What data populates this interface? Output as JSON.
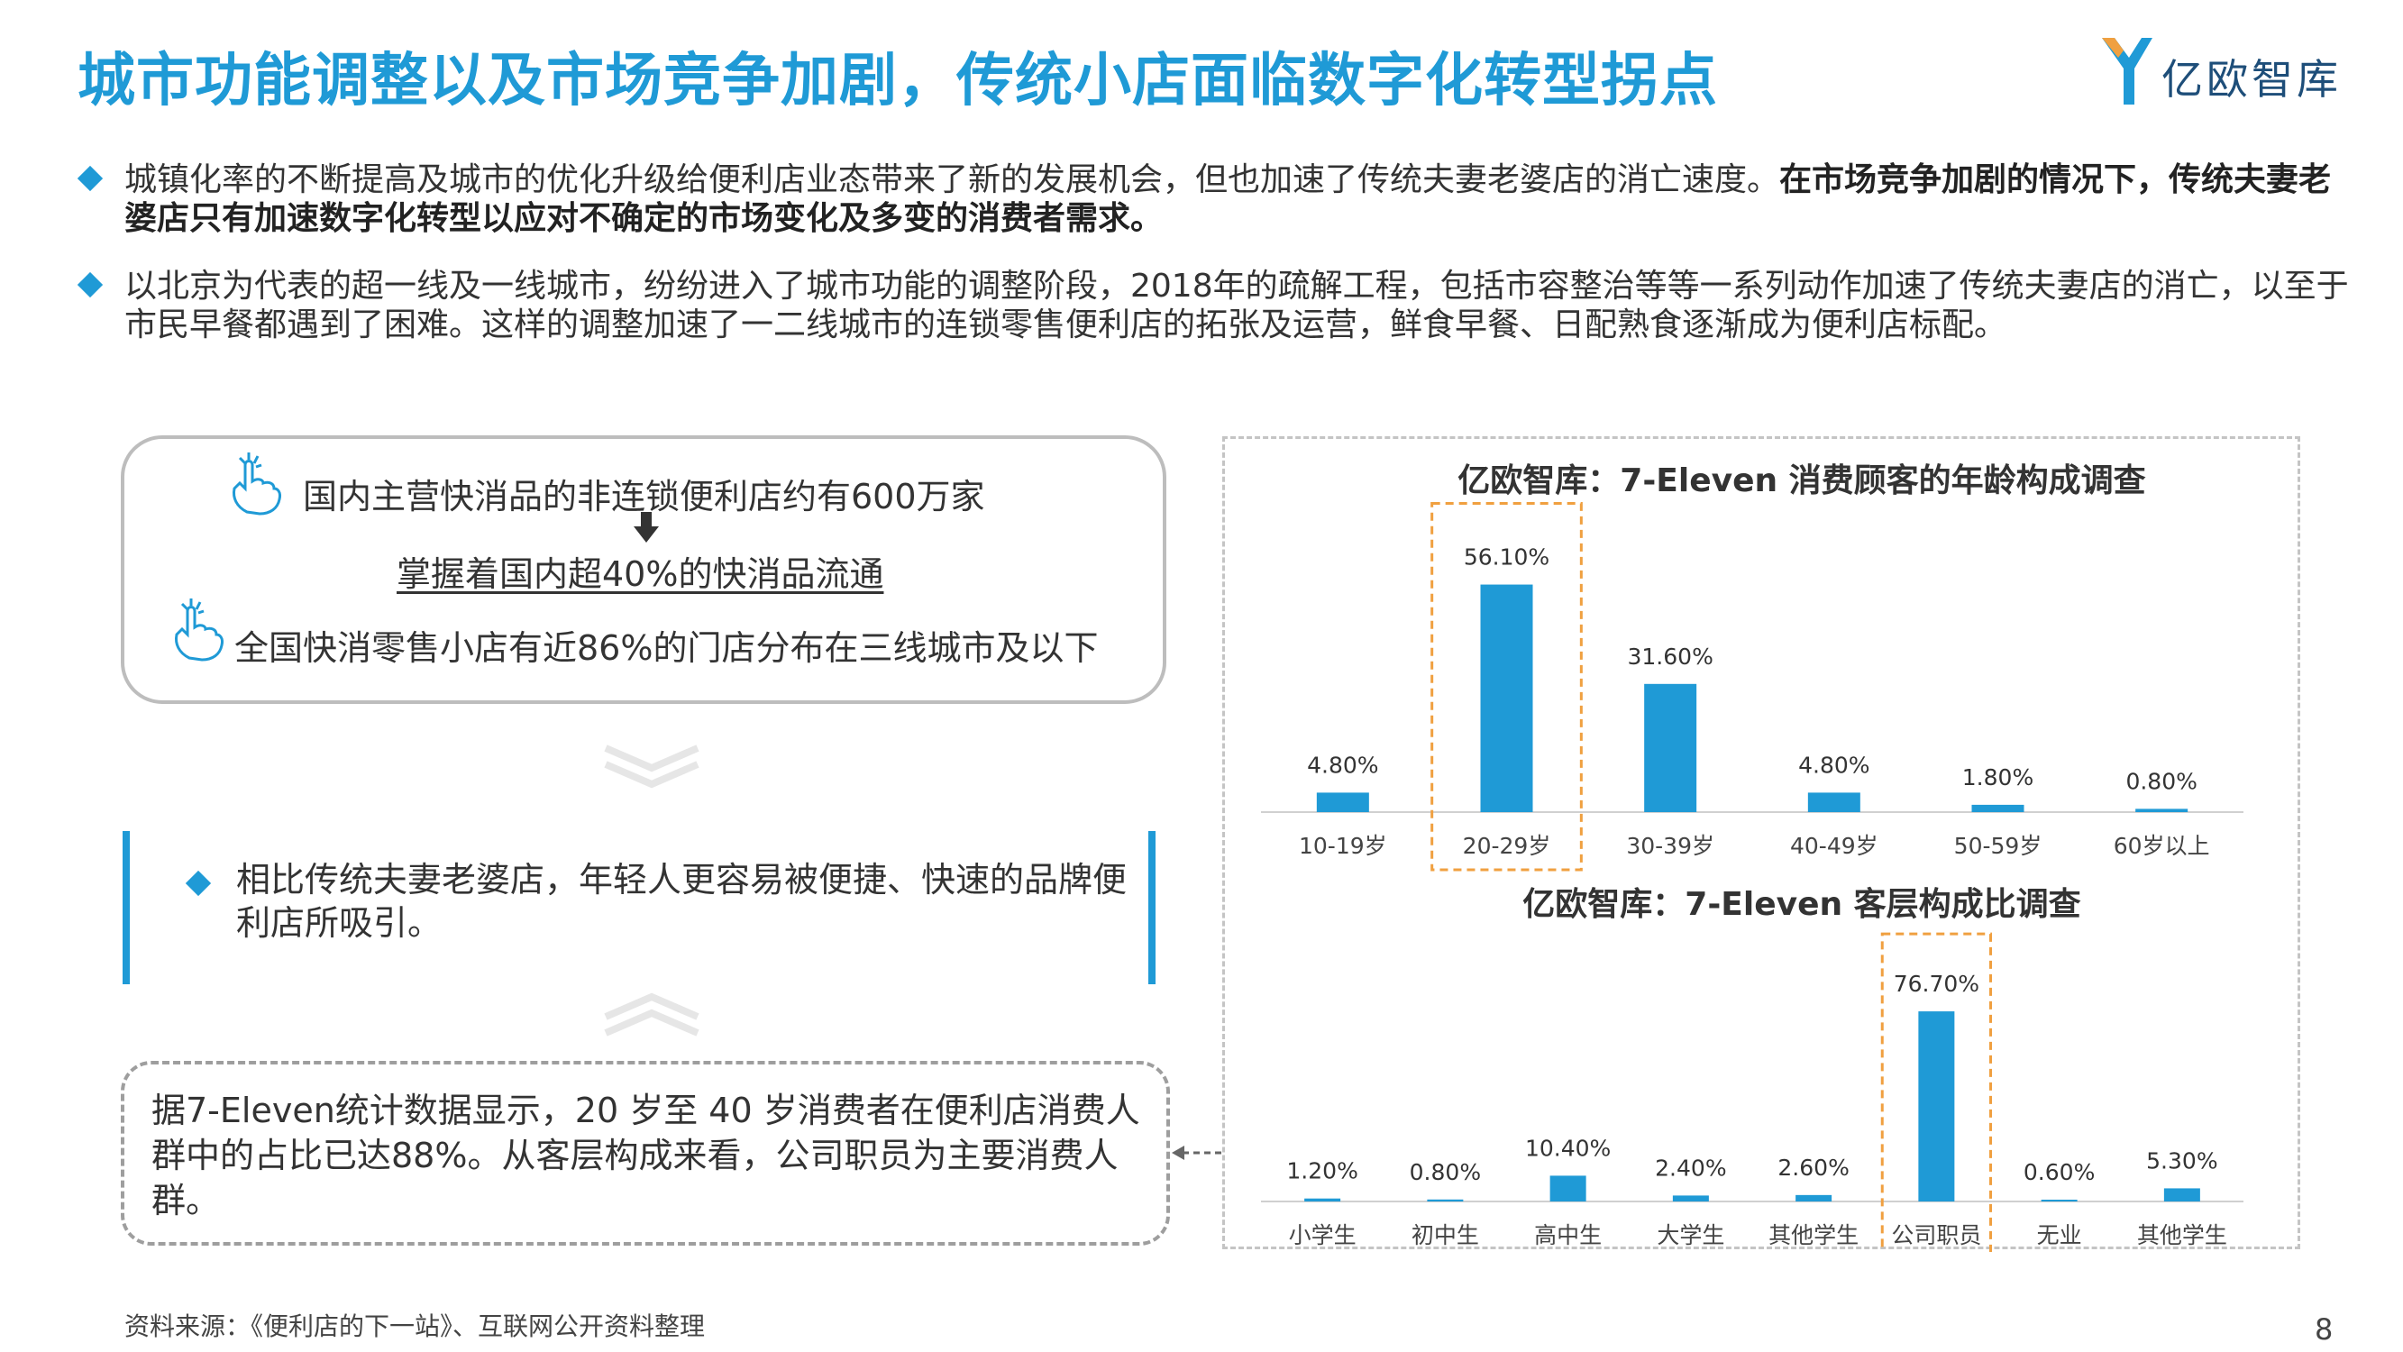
{
  "title": "城市功能调整以及市场竞争加剧，传统小店面临数字化转型拐点",
  "logo": {
    "text": "亿欧智库",
    "brand_color": "#1f9ad6"
  },
  "bullets": [
    {
      "text": "城镇化率的不断提高及城市的优化升级给便利店业态带来了新的发展机会，但也加速了传统夫妻老婆店的消亡速度。",
      "bold": "在市场竞争加剧的情况下，传统夫妻老婆店只有加速数字化转型以应对不确定的市场变化及多变的消费者需求。"
    },
    {
      "text": "以北京为代表的超一线及一线城市，纷纷进入了城市功能的调整阶段，2018年的疏解工程，包括市容整治等等一系列动作加速了传统夫妻店的消亡，以至于市民早餐都遇到了困难。这样的调整加速了一二线城市的连锁零售便利店的拓张及运营，鲜食早餐、日配熟食逐渐成为便利店标配。",
      "bold": ""
    }
  ],
  "facts": [
    "国内主营快消品的非连锁便利店约有600万家",
    "掌握着国内超40%的快消品流通",
    "全国快消零售小店有近86%的门店分布在三线城市及以下"
  ],
  "quote": "相比传统夫妻老婆店，年轻人更容易被便捷、快速的品牌便利店所吸引。",
  "stat": "据7-Eleven统计数据显示，20 岁至 40 岁消费者在便利店消费人群中的占比已达88%。从客层构成来看，公司职员为主要消费人群。",
  "source": "资料来源：《便利店的下一站》、互联网公开资料整理",
  "page_number": "8",
  "colors": {
    "accent": "#1f9ad6",
    "highlight": "#f0a040",
    "axis": "#d0d0d0"
  },
  "chart_data": [
    {
      "type": "bar",
      "title": "亿欧智库：7-Eleven 消费顾客的年龄构成调查",
      "categories": [
        "10-19岁",
        "20-29岁",
        "30-39岁",
        "40-49岁",
        "50-59岁",
        "60岁以上"
      ],
      "values": [
        4.8,
        56.1,
        31.6,
        4.8,
        1.8,
        0.8
      ],
      "value_labels": [
        "4.80%",
        "56.10%",
        "31.60%",
        "4.80%",
        "1.80%",
        "0.80%"
      ],
      "unit": "%",
      "highlight_index": 1,
      "ylim": [
        0,
        60
      ]
    },
    {
      "type": "bar",
      "title": "亿欧智库：7-Eleven 客层构成比调查",
      "categories": [
        "小学生",
        "初中生",
        "高中生",
        "大学生",
        "其他学生",
        "公司职员",
        "无业",
        "其他学生"
      ],
      "values": [
        1.2,
        0.8,
        10.4,
        2.4,
        2.6,
        76.7,
        0.6,
        5.3
      ],
      "value_labels": [
        "1.20%",
        "0.80%",
        "10.40%",
        "2.40%",
        "2.60%",
        "76.70%",
        "0.60%",
        "5.30%"
      ],
      "unit": "%",
      "highlight_index": 5,
      "ylim": [
        0,
        80
      ]
    }
  ]
}
